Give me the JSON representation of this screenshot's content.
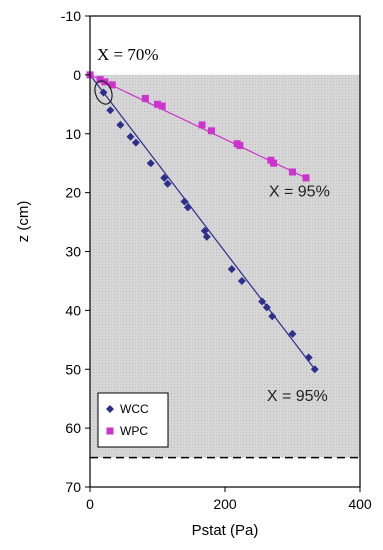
{
  "chart_data": {
    "type": "scatter",
    "xlabel": "Pstat (Pa)",
    "ylabel": "z (cm)",
    "xlim": [
      0,
      400
    ],
    "ylim": [
      -10,
      70
    ],
    "y_inverted": true,
    "x_ticks": [
      "0",
      "200",
      "400"
    ],
    "y_ticks": [
      "-10",
      "0",
      "10",
      "20",
      "30",
      "40",
      "50",
      "60",
      "70"
    ],
    "shaded_region": {
      "z_from": 0,
      "z_to": 65,
      "color": "#d6d6d6"
    },
    "dashed_line_z": 65,
    "legend_position": "bottom-left",
    "series": [
      {
        "name": "WCC",
        "color": "#2e2e8c",
        "marker": "diamond",
        "points": [
          [
            0,
            0
          ],
          [
            20,
            3
          ],
          [
            30,
            6
          ],
          [
            45,
            8.5
          ],
          [
            60,
            10.5
          ],
          [
            68,
            11.5
          ],
          [
            90,
            15
          ],
          [
            110,
            17.5
          ],
          [
            115,
            18.5
          ],
          [
            140,
            21.5
          ],
          [
            145,
            22.5
          ],
          [
            170,
            26.5
          ],
          [
            173,
            27.5
          ],
          [
            210,
            33
          ],
          [
            225,
            35
          ],
          [
            255,
            38.5
          ],
          [
            262,
            39.5
          ],
          [
            270,
            41
          ],
          [
            300,
            44
          ],
          [
            324,
            48
          ],
          [
            333,
            50
          ]
        ]
      },
      {
        "name": "WPC",
        "color": "#cc33cc",
        "marker": "square",
        "points": [
          [
            0,
            0
          ],
          [
            15,
            0.8
          ],
          [
            22,
            1.2
          ],
          [
            33,
            1.7
          ],
          [
            82,
            4
          ],
          [
            100,
            5
          ],
          [
            107,
            5.3
          ],
          [
            166,
            8.5
          ],
          [
            180,
            9.5
          ],
          [
            218,
            11.7
          ],
          [
            222,
            12
          ],
          [
            268,
            14.5
          ],
          [
            272,
            15
          ],
          [
            300,
            16.5
          ],
          [
            320,
            17.5
          ]
        ]
      }
    ],
    "annotations": [
      {
        "text": "X = 70%",
        "z": -3
      },
      {
        "text": "X = 95%",
        "z": 21
      },
      {
        "text": "X = 95%",
        "z": 54
      }
    ]
  }
}
